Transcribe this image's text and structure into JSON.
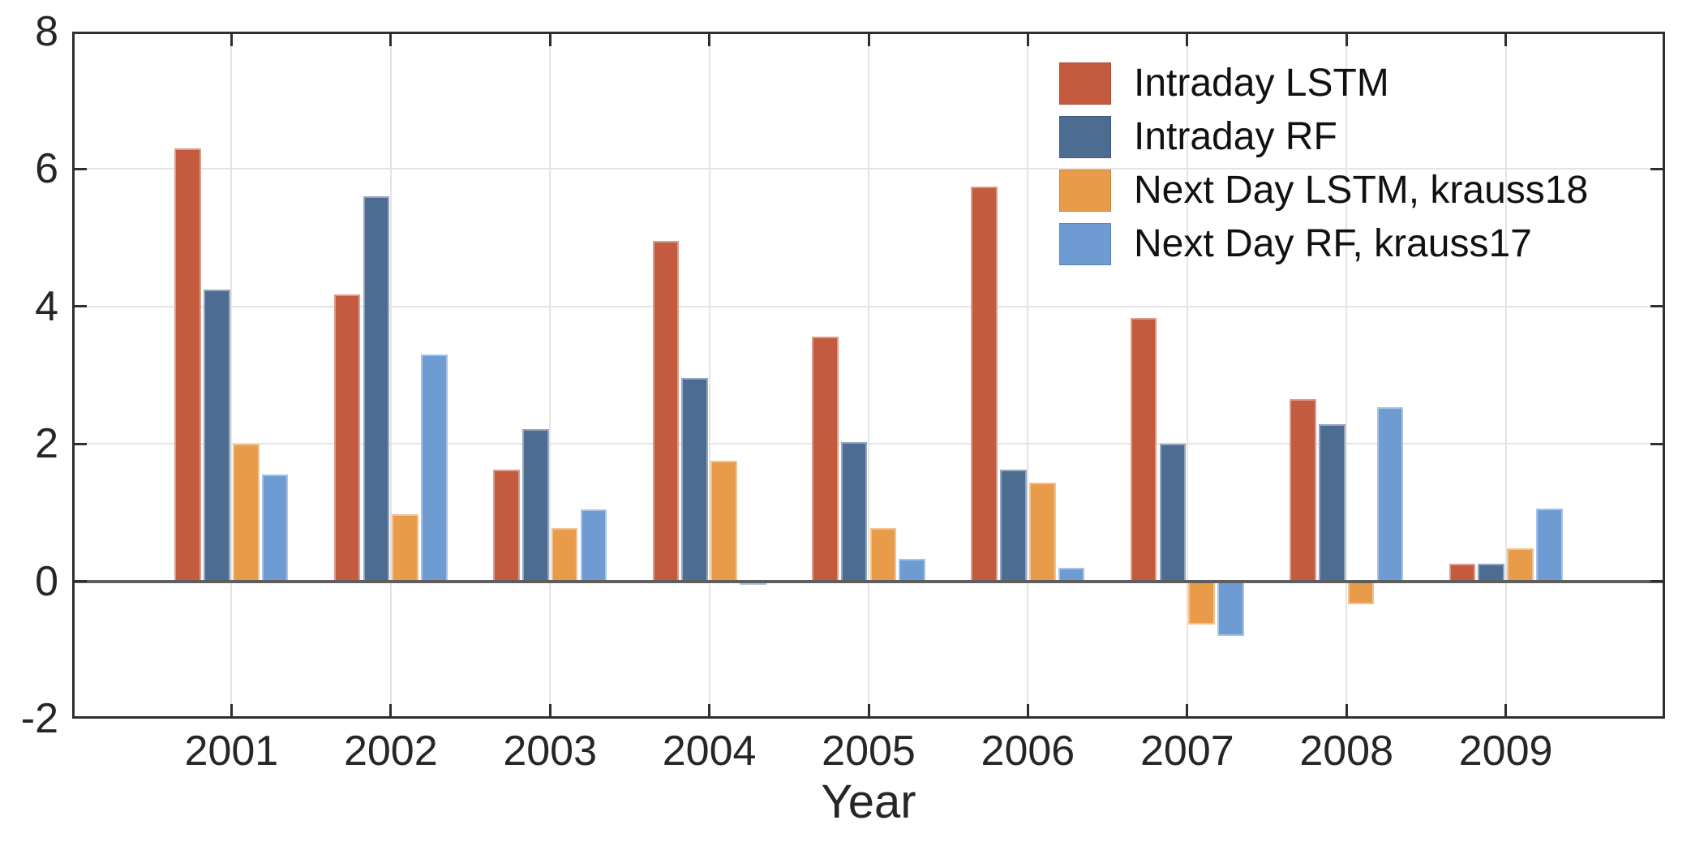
{
  "figure": {
    "background": "#FFFFFF",
    "axis_color": "#2F2F2F",
    "grid_color": "#E4E4E4",
    "zero_line_color": "#5E5E5E",
    "tick_label_color": "#262626"
  },
  "chart_data": {
    "type": "bar",
    "title": "",
    "xlabel": "Year",
    "ylabel": "",
    "categories": [
      "2001",
      "2002",
      "2003",
      "2004",
      "2005",
      "2006",
      "2007",
      "2008",
      "2009"
    ],
    "series": [
      {
        "name": "Intraday LSTM",
        "color": "#C45B3F",
        "values": [
          6.3,
          4.18,
          1.62,
          4.95,
          3.56,
          5.75,
          3.83,
          2.65,
          0.26
        ]
      },
      {
        "name": "Intraday RF",
        "color": "#4D6C92",
        "values": [
          4.25,
          5.6,
          2.21,
          2.96,
          2.03,
          1.62,
          2.0,
          2.28,
          0.25
        ]
      },
      {
        "name": "Next Day LSTM, krauss18",
        "color": "#E89C4A",
        "values": [
          2.0,
          0.97,
          0.78,
          1.75,
          0.78,
          1.43,
          -0.63,
          -0.33,
          0.48
        ]
      },
      {
        "name": "Next Day RF, krauss17",
        "color": "#6E9CD2",
        "values": [
          1.55,
          3.3,
          1.05,
          -0.05,
          0.32,
          0.2,
          -0.8,
          2.53,
          1.06
        ]
      }
    ],
    "ylim": [
      -2,
      8
    ],
    "yticks": [
      8,
      6,
      4,
      2,
      0,
      -2
    ],
    "grid": true,
    "legend_position": "top-right"
  }
}
